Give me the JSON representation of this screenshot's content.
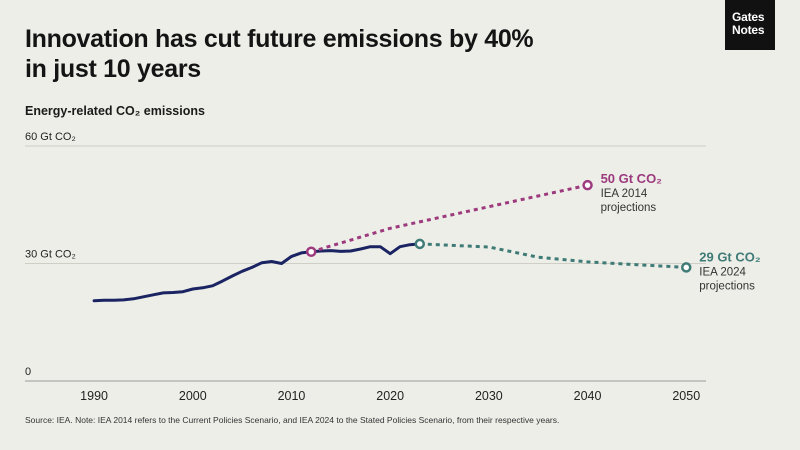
{
  "title": "Innovation has cut future emissions by 40% in just 10 years",
  "logo": {
    "line1": "Gates",
    "line2": "Notes"
  },
  "subtitle": "Energy-related CO₂ emissions",
  "source": "Source: IEA. Note: IEA 2014 refers to the Current Policies Scenario, and IEA 2024 to the Stated Policies Scenario, from their respective years.",
  "colors": {
    "historical": "#1b2463",
    "iea2014": "#9c3a7d",
    "iea2024": "#3f7b76",
    "background": "#eeeee9"
  },
  "chart_data": {
    "type": "line",
    "title": "Innovation has cut future emissions by 40% in just 10 years",
    "ylabel": "Energy-related CO₂ emissions",
    "xlim": [
      1983,
      2052
    ],
    "ylim": [
      0,
      60
    ],
    "y_ticks": [
      {
        "value": 60,
        "label": "60 Gt CO₂"
      },
      {
        "value": 30,
        "label": "30 Gt CO₂"
      },
      {
        "value": 0,
        "label": "0"
      }
    ],
    "x_ticks": [
      1990,
      2000,
      2010,
      2020,
      2030,
      2040,
      2050
    ],
    "series": [
      {
        "key": "historical",
        "style": "solid",
        "x": [
          1990,
          1991,
          1992,
          1993,
          1994,
          1995,
          1996,
          1997,
          1998,
          1999,
          2000,
          2001,
          2002,
          2003,
          2004,
          2005,
          2006,
          2007,
          2008,
          2009,
          2010,
          2011,
          2012,
          2013,
          2014,
          2015,
          2016,
          2017,
          2018,
          2019,
          2020,
          2021,
          2022,
          2023
        ],
        "y": [
          20.5,
          20.6,
          20.6,
          20.7,
          21.0,
          21.5,
          22.0,
          22.5,
          22.6,
          22.8,
          23.5,
          23.8,
          24.3,
          25.5,
          26.8,
          28.0,
          29.0,
          30.2,
          30.5,
          30.0,
          31.8,
          32.7,
          33.0,
          33.2,
          33.3,
          33.1,
          33.2,
          33.7,
          34.3,
          34.3,
          32.5,
          34.3,
          34.8,
          35.0
        ]
      },
      {
        "key": "iea2014",
        "style": "dashed",
        "x": [
          2012,
          2020,
          2030,
          2040
        ],
        "y": [
          33.0,
          39.0,
          44.5,
          50.0
        ]
      },
      {
        "key": "iea2024",
        "style": "dashed",
        "x": [
          2023,
          2030,
          2035,
          2040,
          2045,
          2050
        ],
        "y": [
          35.0,
          34.2,
          31.6,
          30.4,
          29.7,
          29.0
        ]
      }
    ],
    "annotations": [
      {
        "value": "50 Gt CO₂",
        "line1": "IEA 2014",
        "line2": "projections"
      },
      {
        "value": "29 Gt CO₂",
        "line1": "IEA 2024",
        "line2": "projections"
      }
    ]
  }
}
